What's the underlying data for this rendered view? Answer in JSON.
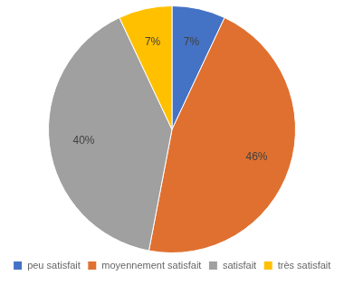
{
  "chart_data": {
    "type": "pie",
    "categories": [
      "peu satisfait",
      "moyennement satisfait",
      "satisfait",
      "très satisfait"
    ],
    "values": [
      7,
      46,
      40,
      7
    ],
    "value_labels": [
      "7%",
      "46%",
      "40%",
      "7%"
    ],
    "colors": [
      "#4472c4",
      "#e07030",
      "#a0a0a0",
      "#ffc000"
    ],
    "data_labels": true,
    "legend": "bottom"
  }
}
